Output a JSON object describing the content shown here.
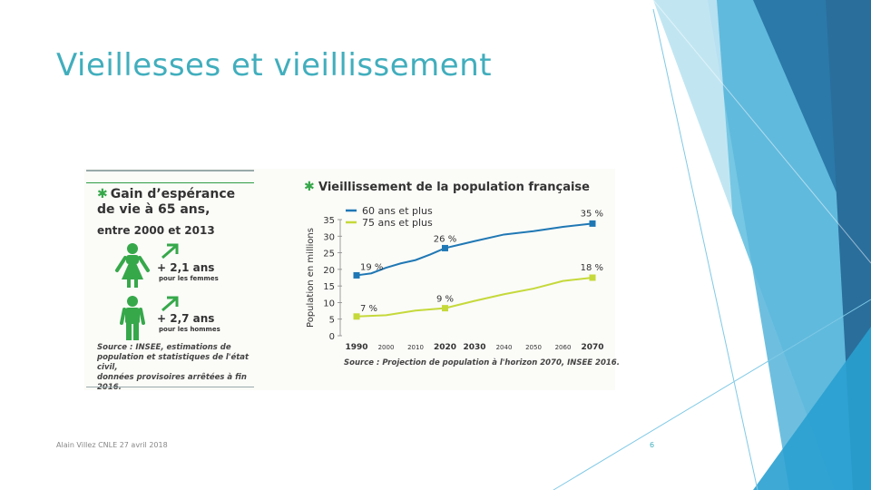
{
  "slide": {
    "title": "Vieillesses et vieillissement",
    "footer_left": "Alain Villez CNLE 27 avril 2018",
    "page_number": "6",
    "accent": "#41aebd"
  },
  "left_panel": {
    "title_line1": "Gain d’espérance",
    "title_line2": "de vie à 65 ans,",
    "subtitle": "entre 2000 et 2013",
    "women_gain": "+ 2,1 ans",
    "women_label": "pour les femmes",
    "men_gain": "+ 2,7 ans",
    "men_label": "pour les hommes",
    "source_line1": "Source : INSEE, estimations de",
    "source_line2": "population et statistiques de l'état civil,",
    "source_line3": "données provisoires arrêtées à fin 2016.",
    "green": "#36a84a"
  },
  "chart_data": {
    "type": "line",
    "title": "Vieillissement de la population française",
    "ylabel": "Population en millions",
    "ylim": [
      0,
      35
    ],
    "yticks": [
      0,
      5,
      10,
      15,
      20,
      25,
      30,
      35
    ],
    "xticks": [
      "1990",
      "2000",
      "2010",
      "2020",
      "2030",
      "2040",
      "2050",
      "2060",
      "2070"
    ],
    "xtick_values": [
      1990,
      2000,
      2010,
      2020,
      2030,
      2040,
      2050,
      2060,
      2070
    ],
    "series": [
      {
        "name": "60 ans et plus",
        "color": "#1f78b4",
        "x": [
          1990,
          1995,
          2000,
          2005,
          2010,
          2015,
          2020,
          2030,
          2040,
          2050,
          2060,
          2070
        ],
        "values": [
          18.2,
          18.8,
          20.5,
          21.8,
          22.8,
          24.5,
          26.4,
          28.5,
          30.5,
          31.5,
          32.8,
          33.8
        ],
        "markers": [
          {
            "x": 1990,
            "y": 18.2,
            "label": "19 %"
          },
          {
            "x": 2020,
            "y": 26.4,
            "label": "26 %"
          },
          {
            "x": 2070,
            "y": 33.8,
            "label": "35 %"
          }
        ]
      },
      {
        "name": "75 ans et plus",
        "color": "#c5d93a",
        "x": [
          1990,
          2000,
          2010,
          2020,
          2030,
          2040,
          2050,
          2060,
          2070
        ],
        "values": [
          5.8,
          6.2,
          7.6,
          8.3,
          10.5,
          12.5,
          14.2,
          16.5,
          17.5
        ],
        "markers": [
          {
            "x": 1990,
            "y": 5.8,
            "label": "7 %"
          },
          {
            "x": 2020,
            "y": 8.3,
            "label": "9 %"
          },
          {
            "x": 2070,
            "y": 17.5,
            "label": "18 %"
          }
        ]
      }
    ],
    "source": "Source : Projection de population à l'horizon 2070, INSEE 2016."
  }
}
